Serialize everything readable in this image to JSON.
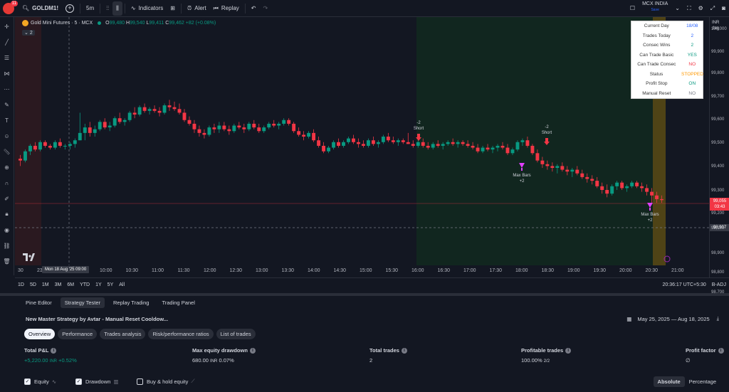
{
  "topbar": {
    "avatar_badge": "11",
    "symbol": "GOLDM1!",
    "interval": "5m",
    "indicators": "Indicators",
    "alert": "Alert",
    "replay": "Replay",
    "exchange": "MCX INDIA",
    "exchange_sub": "Save"
  },
  "legend": {
    "title": "Gold Mini Futures · 5 · MCX",
    "o": "99,480",
    "h": "99,540",
    "l": "99,411",
    "c": "99,462",
    "chg": "+82 (+0.08%)",
    "collapse": "2"
  },
  "stats_table": [
    {
      "k": "Current Day",
      "v": "18/08",
      "c": "#2962ff"
    },
    {
      "k": "Trades Today",
      "v": "2",
      "c": "#2962ff"
    },
    {
      "k": "Consec Wins",
      "v": "2",
      "c": "#089981"
    },
    {
      "k": "Can Trade Basic",
      "v": "YES",
      "c": "#089981"
    },
    {
      "k": "Can Trade Consec",
      "v": "NO",
      "c": "#f23645"
    },
    {
      "k": "Status",
      "v": "STOPPED",
      "c": "#ff9800"
    },
    {
      "k": "Profit Stop",
      "v": "ON",
      "c": "#089981"
    },
    {
      "k": "Manual Reset",
      "v": "NO",
      "c": "#787b86"
    }
  ],
  "price_axis": {
    "currency": "INR",
    "unit": "dag",
    "labels": [
      "100,000",
      "99,900",
      "99,800",
      "99,700",
      "99,600",
      "99,500",
      "99,400",
      "99,300",
      "99,200",
      "99,100",
      "98,900",
      "98,800",
      "98,700"
    ],
    "current_price": "99,055",
    "countdown": "03:43",
    "crosshair_price": "98,907"
  },
  "time_axis": {
    "left_edge": "30",
    "partial": "23",
    "hover": "Mon 18 Aug '25  09:00",
    "labels": [
      "10:00",
      "10:30",
      "11:00",
      "11:30",
      "12:00",
      "12:30",
      "13:00",
      "13:30",
      "14:00",
      "14:30",
      "15:00",
      "15:30",
      "16:00",
      "16:30",
      "17:00",
      "17:30",
      "18:00",
      "18:30",
      "19:00",
      "19:30",
      "20:00",
      "20:30",
      "21:00"
    ]
  },
  "signals": {
    "short1": [
      "-2",
      "Short"
    ],
    "short2": [
      "-2",
      "Short"
    ],
    "exit1": [
      "Max Bars",
      "+2"
    ],
    "exit2": [
      "Max Bars",
      "+2"
    ]
  },
  "chart_data": {
    "type": "candlestick",
    "symbol": "GOLDM1!",
    "interval": "5m",
    "y_range": [
      98700,
      100050
    ],
    "ohlc": [
      [
        99280,
        99300,
        99240,
        99270
      ],
      [
        99270,
        99330,
        99260,
        99320
      ],
      [
        99320,
        99360,
        99300,
        99350
      ],
      [
        99350,
        99370,
        99320,
        99330
      ],
      [
        99330,
        99380,
        99320,
        99370
      ],
      [
        99370,
        99380,
        99340,
        99350
      ],
      [
        99350,
        99360,
        99330,
        99340
      ],
      [
        99340,
        99380,
        99330,
        99370
      ],
      [
        99370,
        99390,
        99340,
        99350
      ],
      [
        99350,
        99360,
        99330,
        99350
      ],
      [
        99350,
        99370,
        99330,
        99360
      ],
      [
        99360,
        99390,
        99340,
        99380
      ],
      [
        99380,
        99530,
        99380,
        99420
      ],
      [
        99420,
        99470,
        99380,
        99450
      ],
      [
        99450,
        99480,
        99400,
        99420
      ],
      [
        99420,
        99460,
        99400,
        99440
      ],
      [
        99440,
        99490,
        99430,
        99480
      ],
      [
        99480,
        99500,
        99440,
        99450
      ],
      [
        99450,
        99480,
        99430,
        99460
      ],
      [
        99460,
        99510,
        99450,
        99500
      ],
      [
        99500,
        99530,
        99470,
        99480
      ],
      [
        99480,
        99500,
        99460,
        99490
      ],
      [
        99490,
        99540,
        99480,
        99530
      ],
      [
        99530,
        99560,
        99500,
        99520
      ],
      [
        99520,
        99570,
        99510,
        99560
      ],
      [
        99560,
        99580,
        99530,
        99540
      ],
      [
        99540,
        99560,
        99520,
        99550
      ],
      [
        99550,
        99570,
        99530,
        99540
      ],
      [
        99540,
        99560,
        99510,
        99530
      ],
      [
        99530,
        99580,
        99520,
        99570
      ],
      [
        99570,
        99600,
        99540,
        99560
      ],
      [
        99560,
        99590,
        99540,
        99550
      ],
      [
        99550,
        99580,
        99520,
        99530
      ],
      [
        99530,
        99550,
        99480,
        99490
      ],
      [
        99490,
        99510,
        99460,
        99470
      ],
      [
        99470,
        99490,
        99420,
        99440
      ],
      [
        99440,
        99460,
        99400,
        99420
      ],
      [
        99420,
        99440,
        99390,
        99410
      ],
      [
        99410,
        99460,
        99400,
        99450
      ],
      [
        99450,
        99470,
        99420,
        99440
      ],
      [
        99440,
        99480,
        99420,
        99460
      ],
      [
        99460,
        99480,
        99430,
        99440
      ],
      [
        99440,
        99460,
        99410,
        99430
      ],
      [
        99430,
        99470,
        99420,
        99460
      ],
      [
        99460,
        99480,
        99440,
        99450
      ],
      [
        99450,
        99470,
        99420,
        99440
      ],
      [
        99440,
        99480,
        99430,
        99470
      ],
      [
        99470,
        99490,
        99440,
        99450
      ],
      [
        99450,
        99470,
        99420,
        99430
      ],
      [
        99430,
        99460,
        99420,
        99450
      ],
      [
        99450,
        99480,
        99440,
        99470
      ],
      [
        99470,
        99490,
        99450,
        99460
      ],
      [
        99460,
        99480,
        99440,
        99470
      ],
      [
        99470,
        99500,
        99460,
        99490
      ],
      [
        99490,
        99500,
        99460,
        99470
      ],
      [
        99470,
        99480,
        99420,
        99430
      ],
      [
        99430,
        99450,
        99400,
        99410
      ],
      [
        99410,
        99430,
        99380,
        99400
      ],
      [
        99400,
        99430,
        99390,
        99420
      ],
      [
        99420,
        99440,
        99370,
        99380
      ],
      [
        99380,
        99400,
        99340,
        99350
      ],
      [
        99350,
        99370,
        99310,
        99320
      ],
      [
        99320,
        99350,
        99310,
        99340
      ],
      [
        99340,
        99380,
        99330,
        99370
      ],
      [
        99370,
        99390,
        99340,
        99350
      ],
      [
        99350,
        99380,
        99340,
        99370
      ],
      [
        99370,
        99400,
        99360,
        99390
      ],
      [
        99390,
        99410,
        99360,
        99370
      ],
      [
        99370,
        99390,
        99340,
        99360
      ],
      [
        99360,
        99380,
        99340,
        99350
      ],
      [
        99350,
        99390,
        99340,
        99380
      ],
      [
        99380,
        99400,
        99350,
        99360
      ],
      [
        99360,
        99380,
        99340,
        99370
      ],
      [
        99370,
        99410,
        99360,
        99400
      ],
      [
        99400,
        99420,
        99370,
        99380
      ],
      [
        99380,
        99400,
        99360,
        99370
      ],
      [
        99370,
        99390,
        99350,
        99380
      ],
      [
        99380,
        99390,
        99360,
        99370
      ],
      [
        99370,
        99420,
        99360,
        99360
      ],
      [
        99360,
        99380,
        99340,
        99350
      ],
      [
        99350,
        99380,
        99340,
        99370
      ],
      [
        99370,
        99390,
        99340,
        99350
      ],
      [
        99350,
        99370,
        99330,
        99340
      ],
      [
        99340,
        99370,
        99330,
        99360
      ],
      [
        99360,
        99380,
        99340,
        99350
      ],
      [
        99350,
        99370,
        99330,
        99360
      ],
      [
        99360,
        99380,
        99350,
        99370
      ],
      [
        99370,
        99390,
        99350,
        99360
      ],
      [
        99360,
        99380,
        99340,
        99370
      ],
      [
        99370,
        99380,
        99350,
        99360
      ],
      [
        99360,
        99380,
        99340,
        99350
      ],
      [
        99350,
        99370,
        99330,
        99340
      ],
      [
        99340,
        99360,
        99310,
        99320
      ],
      [
        99320,
        99350,
        99310,
        99340
      ],
      [
        99340,
        99360,
        99320,
        99330
      ],
      [
        99330,
        99350,
        99310,
        99340
      ],
      [
        99340,
        99360,
        99320,
        99350
      ],
      [
        99350,
        99370,
        99330,
        99340
      ],
      [
        99340,
        99360,
        99300,
        99310
      ],
      [
        99310,
        99340,
        99300,
        99330
      ],
      [
        99330,
        99380,
        99320,
        99370
      ],
      [
        99370,
        99390,
        99350,
        99380
      ],
      [
        99380,
        99400,
        99340,
        99350
      ],
      [
        99350,
        99360,
        99300,
        99310
      ],
      [
        99310,
        99330,
        99260,
        99270
      ],
      [
        99270,
        99290,
        99230,
        99250
      ],
      [
        99250,
        99270,
        99220,
        99240
      ],
      [
        99240,
        99260,
        99210,
        99230
      ],
      [
        99230,
        99250,
        99200,
        99240
      ],
      [
        99240,
        99260,
        99210,
        99220
      ],
      [
        99220,
        99240,
        99190,
        99210
      ],
      [
        99210,
        99230,
        99180,
        99220
      ],
      [
        99220,
        99240,
        99190,
        99200
      ],
      [
        99200,
        99220,
        99170,
        99180
      ],
      [
        99180,
        99200,
        99150,
        99170
      ],
      [
        99170,
        99190,
        99140,
        99160
      ],
      [
        99160,
        99180,
        99120,
        99130
      ],
      [
        99130,
        99150,
        99090,
        99110
      ],
      [
        99110,
        99140,
        99070,
        99090
      ],
      [
        99090,
        99140,
        99080,
        99130
      ],
      [
        99130,
        99160,
        99110,
        99150
      ],
      [
        99150,
        99160,
        99110,
        99120
      ],
      [
        99120,
        99140,
        99100,
        99130
      ],
      [
        99130,
        99160,
        99120,
        99150
      ],
      [
        99150,
        99160,
        99120,
        99130
      ],
      [
        99130,
        99150,
        99100,
        99120
      ],
      [
        99120,
        99140,
        99080,
        99100
      ],
      [
        99100,
        99120,
        99040,
        99080
      ],
      [
        99080,
        99100,
        99040,
        99060
      ],
      [
        99060,
        99080,
        99040,
        99055
      ]
    ]
  },
  "range_bar": {
    "items": [
      "1D",
      "5D",
      "1M",
      "3M",
      "6M",
      "YTD",
      "1Y",
      "5Y",
      "All"
    ],
    "clock": "20:36:17 UTC+5:30",
    "adj": "B-ADJ"
  },
  "panel_tabs": [
    "Pine Editor",
    "Strategy Tester",
    "Replay Trading",
    "Trading Panel"
  ],
  "strategy": {
    "name": "New Master Strategy by Avtar - Manual Reset Cooldow...",
    "date_range": "May 25, 2025 — Aug 18, 2025"
  },
  "sub_tabs": [
    "Overview",
    "Performance",
    "Trades analysis",
    "Risk/performance ratios",
    "List of trades"
  ],
  "metrics": {
    "pnl": {
      "title": "Total P&L",
      "value": "+5,220.00",
      "unit": "INR",
      "pct": "+0.52%"
    },
    "dd": {
      "title": "Max equity drawdown",
      "value": "680.00",
      "unit": "INR",
      "pct": "0.07%"
    },
    "trades": {
      "title": "Total trades",
      "value": "2"
    },
    "profitable": {
      "title": "Profitable trades",
      "value": "100.00%",
      "ratio": "2/2"
    },
    "pf": {
      "title": "Profit factor",
      "value": "∅"
    }
  },
  "footer": {
    "equity": "Equity",
    "drawdown": "Drawdown",
    "buyhold": "Buy & hold equity",
    "absolute": "Absolute",
    "percentage": "Percentage"
  },
  "colors": {
    "up": "#089981",
    "down": "#f23645",
    "bg": "#131722"
  }
}
